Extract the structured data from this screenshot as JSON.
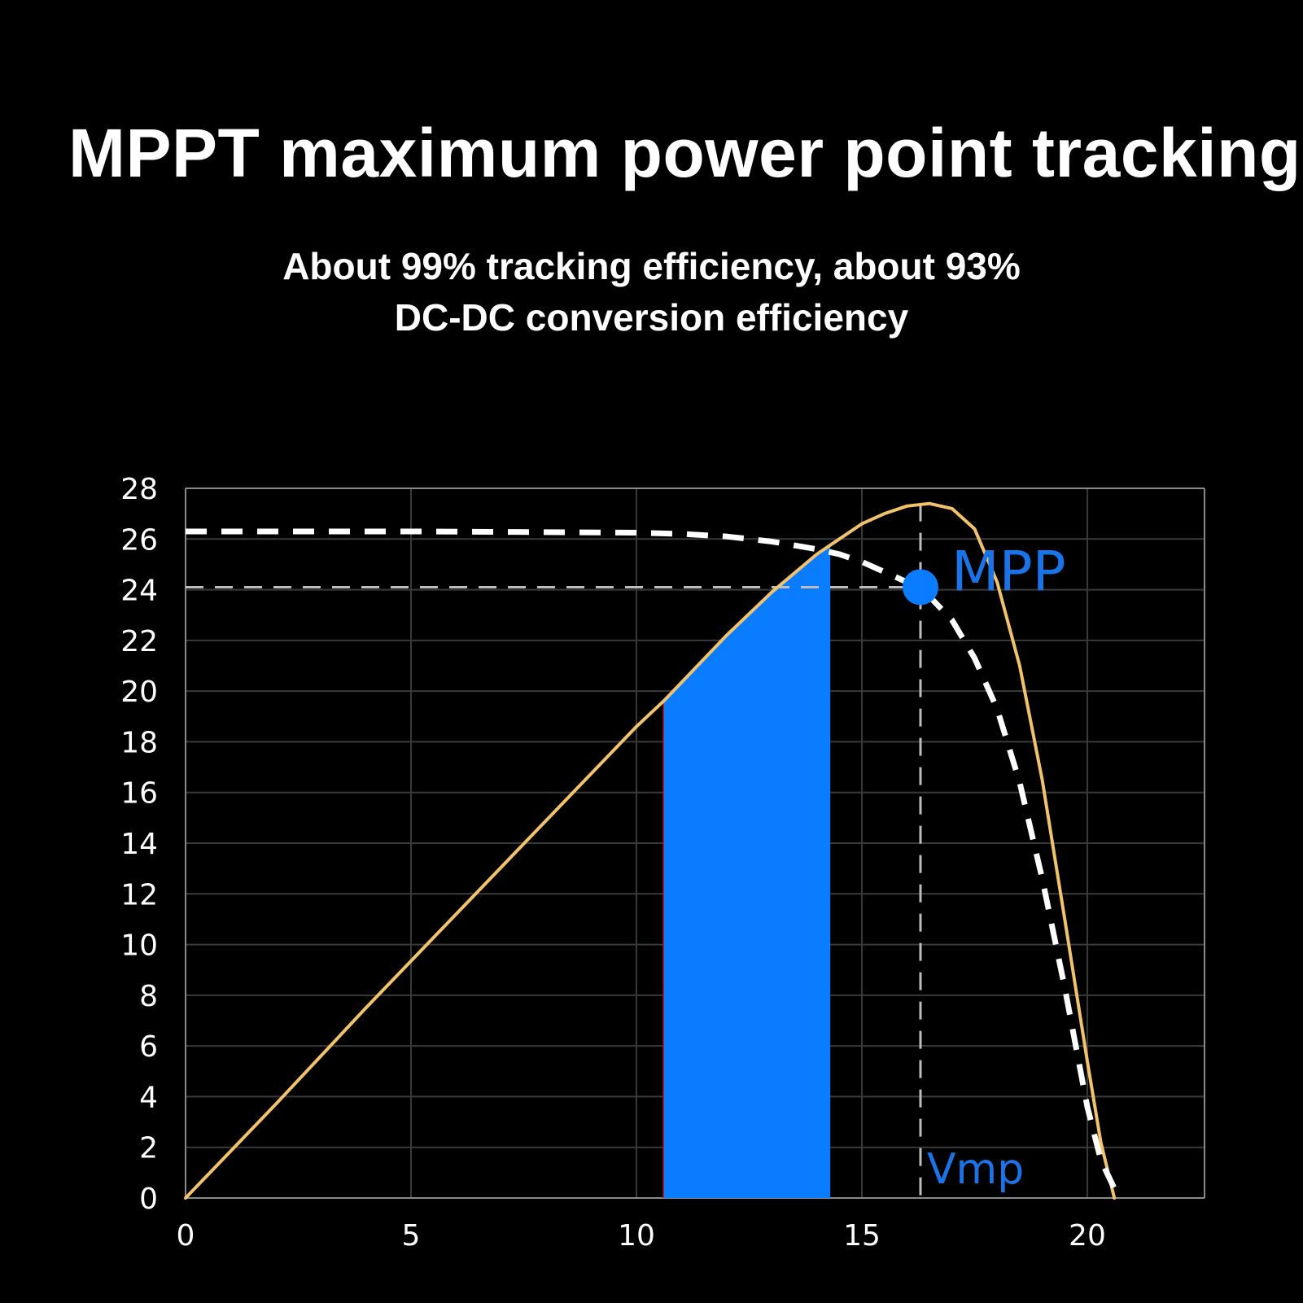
{
  "header": {
    "title": "MPPT maximum power point tracking",
    "subtitle_line1": "About 99% tracking efficiency, about 93%",
    "subtitle_line2": "DC-DC conversion efficiency"
  },
  "colors": {
    "background": "#000000",
    "grid": "#3a3a3a",
    "power_curve": "#f2c36b",
    "iv_curve": "#ffffff",
    "highlight": "#0a7cff",
    "annotation": "#1a74e8"
  },
  "chart_data": {
    "type": "line",
    "title": "",
    "xlabel": "",
    "ylabel": "",
    "xlim": [
      0,
      22.6
    ],
    "ylim": [
      0,
      28
    ],
    "xticks": [
      0,
      5,
      10,
      15,
      20
    ],
    "yticks": [
      0,
      2,
      4,
      6,
      8,
      10,
      12,
      14,
      16,
      18,
      20,
      22,
      24,
      26,
      28
    ],
    "grid": true,
    "series": [
      {
        "style": "solid",
        "color": "#f2c36b",
        "x": [
          0,
          2,
          4,
          6,
          8,
          10,
          10.6,
          12,
          13,
          14,
          14.5,
          15,
          15.5,
          16,
          16.5,
          17,
          17.5,
          18,
          18.5,
          19,
          19.5,
          20,
          20.3,
          20.6
        ],
        "y": [
          0,
          3.7,
          7.5,
          11.2,
          14.9,
          18.6,
          19.6,
          22.2,
          23.9,
          25.4,
          26.0,
          26.6,
          27.0,
          27.3,
          27.4,
          27.2,
          26.4,
          24.3,
          21.0,
          16.5,
          11.0,
          5.4,
          2.2,
          0
        ]
      },
      {
        "style": "dashed",
        "color": "#ffffff",
        "x": [
          0,
          5,
          10,
          11,
          12,
          13,
          14,
          14.5,
          15,
          15.5,
          16,
          16.3,
          17,
          17.5,
          18,
          18.5,
          19,
          19.5,
          20,
          20.3,
          20.7
        ],
        "y": [
          26.3,
          26.3,
          26.25,
          26.2,
          26.1,
          25.9,
          25.6,
          25.4,
          25.1,
          24.7,
          24.3,
          24.1,
          22.8,
          21.3,
          19.3,
          16.4,
          12.6,
          8.3,
          3.6,
          1.5,
          0
        ]
      }
    ],
    "shaded_region": {
      "x_start": 10.6,
      "x_end": 14.3
    },
    "reference_lines": {
      "y": 24.1,
      "x": 16.3
    },
    "mpp_point": {
      "x": 16.3,
      "y": 24.1,
      "label": "MPP"
    },
    "vmp_label": "Vmp"
  }
}
